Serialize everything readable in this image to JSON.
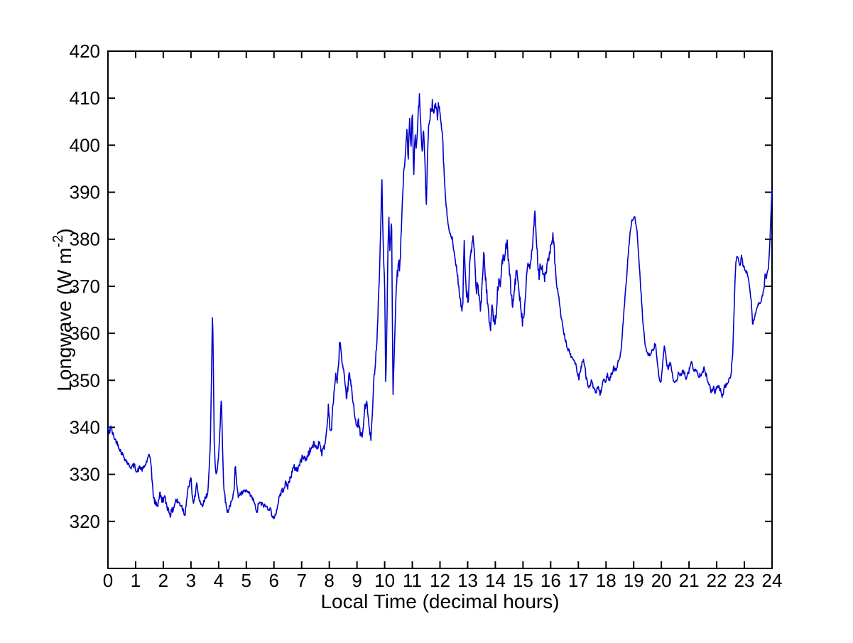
{
  "chart_data": {
    "type": "line",
    "title": "",
    "xlabel": "Local Time (decimal hours)",
    "ylabel": "Longwave (W m^-2)",
    "ylabel_parts": {
      "prefix": "Longwave (W m",
      "superscript": "-2",
      "suffix": ")"
    },
    "xlim": [
      0,
      24
    ],
    "ylim": [
      310,
      420
    ],
    "x_ticks": [
      0,
      1,
      2,
      3,
      4,
      5,
      6,
      7,
      8,
      9,
      10,
      11,
      12,
      13,
      14,
      15,
      16,
      17,
      18,
      19,
      20,
      21,
      22,
      23,
      24
    ],
    "y_ticks": [
      320,
      330,
      340,
      350,
      360,
      370,
      380,
      390,
      400,
      410,
      420
    ],
    "grid": false,
    "box": true,
    "tick_dir": "in",
    "legend": null,
    "line_color": "#0000CC",
    "axis_color": "#000000",
    "background": "#FFFFFF",
    "series_name": "Longwave",
    "sample_step_hours": 0.0167,
    "noise": {
      "seed": 42,
      "segments": [
        [
          0,
          1.55,
          0.5
        ],
        [
          1.55,
          3.6,
          0.7
        ],
        [
          3.6,
          4.2,
          0.5
        ],
        [
          4.2,
          6.1,
          0.5
        ],
        [
          6.1,
          7.9,
          0.7
        ],
        [
          7.9,
          9.55,
          0.8
        ],
        [
          9.55,
          10.45,
          0.8
        ],
        [
          10.45,
          12.15,
          1.2
        ],
        [
          12.15,
          12.8,
          0.6
        ],
        [
          12.8,
          16.15,
          1.2
        ],
        [
          16.15,
          17,
          0.5
        ],
        [
          17,
          18.45,
          0.6
        ],
        [
          18.45,
          19.3,
          0.4
        ],
        [
          19.3,
          22.5,
          0.5
        ],
        [
          22.5,
          24.01,
          0.4
        ]
      ]
    },
    "anchors": [
      [
        0,
        340
      ],
      [
        0.05,
        338.5
      ],
      [
        0.1,
        340.5
      ],
      [
        0.15,
        339
      ],
      [
        0.25,
        337.5
      ],
      [
        0.35,
        336.5
      ],
      [
        0.45,
        335
      ],
      [
        0.55,
        334
      ],
      [
        0.65,
        333
      ],
      [
        0.75,
        332
      ],
      [
        0.85,
        331.5
      ],
      [
        0.95,
        332
      ],
      [
        1.05,
        330.5
      ],
      [
        1.15,
        331.5
      ],
      [
        1.25,
        331
      ],
      [
        1.35,
        332
      ],
      [
        1.45,
        333.5
      ],
      [
        1.5,
        334
      ],
      [
        1.55,
        333
      ],
      [
        1.6,
        328
      ],
      [
        1.65,
        325
      ],
      [
        1.7,
        324
      ],
      [
        1.8,
        323.5
      ],
      [
        1.87,
        326
      ],
      [
        1.95,
        324.5
      ],
      [
        2.05,
        325
      ],
      [
        2.15,
        323
      ],
      [
        2.25,
        321.5
      ],
      [
        2.35,
        322.5
      ],
      [
        2.45,
        324.5
      ],
      [
        2.55,
        324
      ],
      [
        2.65,
        323.5
      ],
      [
        2.78,
        321.5
      ],
      [
        2.85,
        325
      ],
      [
        2.92,
        327.5
      ],
      [
        3.0,
        329
      ],
      [
        3.07,
        324
      ],
      [
        3.15,
        325
      ],
      [
        3.22,
        328.5
      ],
      [
        3.3,
        324
      ],
      [
        3.4,
        323
      ],
      [
        3.5,
        324.5
      ],
      [
        3.6,
        326
      ],
      [
        3.65,
        330
      ],
      [
        3.7,
        336
      ],
      [
        3.74,
        350
      ],
      [
        3.78,
        366
      ],
      [
        3.81,
        353
      ],
      [
        3.84,
        337
      ],
      [
        3.88,
        331
      ],
      [
        3.93,
        330
      ],
      [
        4.0,
        334
      ],
      [
        4.05,
        340
      ],
      [
        4.1,
        347
      ],
      [
        4.14,
        336
      ],
      [
        4.18,
        328
      ],
      [
        4.25,
        324
      ],
      [
        4.32,
        322
      ],
      [
        4.42,
        323.5
      ],
      [
        4.5,
        324.5
      ],
      [
        4.56,
        327
      ],
      [
        4.6,
        333
      ],
      [
        4.65,
        328
      ],
      [
        4.7,
        325.5
      ],
      [
        4.85,
        326
      ],
      [
        5.0,
        326.5
      ],
      [
        5.15,
        325.5
      ],
      [
        5.3,
        324
      ],
      [
        5.37,
        321.5
      ],
      [
        5.45,
        324
      ],
      [
        5.6,
        323.5
      ],
      [
        5.75,
        323
      ],
      [
        5.88,
        322.5
      ],
      [
        5.95,
        321
      ],
      [
        6.02,
        320.5
      ],
      [
        6.1,
        322.5
      ],
      [
        6.2,
        325.5
      ],
      [
        6.3,
        326.5
      ],
      [
        6.42,
        328
      ],
      [
        6.5,
        327.5
      ],
      [
        6.6,
        329.5
      ],
      [
        6.72,
        331.5
      ],
      [
        6.85,
        331
      ],
      [
        6.95,
        332.5
      ],
      [
        7.05,
        334
      ],
      [
        7.15,
        333
      ],
      [
        7.25,
        334.5
      ],
      [
        7.35,
        335.5
      ],
      [
        7.45,
        336.5
      ],
      [
        7.55,
        335.5
      ],
      [
        7.65,
        337
      ],
      [
        7.73,
        334.5
      ],
      [
        7.85,
        336.5
      ],
      [
        7.93,
        341
      ],
      [
        7.97,
        345
      ],
      [
        8.02,
        340
      ],
      [
        8.07,
        338.5
      ],
      [
        8.12,
        344
      ],
      [
        8.18,
        348
      ],
      [
        8.24,
        351.5
      ],
      [
        8.28,
        349
      ],
      [
        8.33,
        353
      ],
      [
        8.38,
        359
      ],
      [
        8.42,
        356.5
      ],
      [
        8.46,
        353.5
      ],
      [
        8.52,
        351.5
      ],
      [
        8.57,
        348.5
      ],
      [
        8.62,
        346.5
      ],
      [
        8.67,
        348.5
      ],
      [
        8.72,
        351.5
      ],
      [
        8.77,
        349.5
      ],
      [
        8.85,
        346
      ],
      [
        8.95,
        341.5
      ],
      [
        9.0,
        339.5
      ],
      [
        9.05,
        341.5
      ],
      [
        9.12,
        338.5
      ],
      [
        9.2,
        338
      ],
      [
        9.28,
        344
      ],
      [
        9.35,
        345.5
      ],
      [
        9.42,
        341
      ],
      [
        9.5,
        337.5
      ],
      [
        9.55,
        342
      ],
      [
        9.62,
        351
      ],
      [
        9.68,
        355
      ],
      [
        9.73,
        360
      ],
      [
        9.78,
        368
      ],
      [
        9.83,
        376
      ],
      [
        9.87,
        386
      ],
      [
        9.9,
        393.5
      ],
      [
        9.93,
        383
      ],
      [
        9.97,
        374
      ],
      [
        10.0,
        371
      ],
      [
        10.04,
        348
      ],
      [
        10.08,
        362
      ],
      [
        10.12,
        378
      ],
      [
        10.15,
        385
      ],
      [
        10.18,
        377
      ],
      [
        10.22,
        381
      ],
      [
        10.25,
        384.5
      ],
      [
        10.3,
        346.5
      ],
      [
        10.35,
        356
      ],
      [
        10.4,
        367
      ],
      [
        10.45,
        372
      ],
      [
        10.5,
        375
      ],
      [
        10.55,
        373.5
      ],
      [
        10.6,
        381.5
      ],
      [
        10.65,
        390
      ],
      [
        10.7,
        394.5
      ],
      [
        10.75,
        398
      ],
      [
        10.8,
        404
      ],
      [
        10.85,
        396
      ],
      [
        10.9,
        405.5
      ],
      [
        10.95,
        399
      ],
      [
        11.0,
        407.5
      ],
      [
        11.05,
        394
      ],
      [
        11.1,
        403
      ],
      [
        11.15,
        399.5
      ],
      [
        11.2,
        406
      ],
      [
        11.26,
        410.8
      ],
      [
        11.31,
        403.5
      ],
      [
        11.36,
        398
      ],
      [
        11.41,
        404.5
      ],
      [
        11.46,
        395
      ],
      [
        11.5,
        386
      ],
      [
        11.55,
        398
      ],
      [
        11.6,
        404.5
      ],
      [
        11.66,
        407
      ],
      [
        11.72,
        409
      ],
      [
        11.78,
        406.5
      ],
      [
        11.84,
        408.5
      ],
      [
        11.9,
        406
      ],
      [
        11.95,
        408.5
      ],
      [
        12.0,
        407
      ],
      [
        12.05,
        404.5
      ],
      [
        12.1,
        400.5
      ],
      [
        12.15,
        394
      ],
      [
        12.2,
        388.5
      ],
      [
        12.25,
        385.5
      ],
      [
        12.3,
        383.5
      ],
      [
        12.37,
        381
      ],
      [
        12.44,
        380
      ],
      [
        12.5,
        377.5
      ],
      [
        12.57,
        375
      ],
      [
        12.63,
        372.5
      ],
      [
        12.7,
        368.5
      ],
      [
        12.77,
        365.5
      ],
      [
        12.82,
        364.5
      ],
      [
        12.87,
        381
      ],
      [
        12.92,
        372
      ],
      [
        12.97,
        368
      ],
      [
        13.02,
        367
      ],
      [
        13.07,
        374
      ],
      [
        13.12,
        376.5
      ],
      [
        13.17,
        379.5
      ],
      [
        13.22,
        380.5
      ],
      [
        13.27,
        372.5
      ],
      [
        13.32,
        369.5
      ],
      [
        13.38,
        370
      ],
      [
        13.43,
        366.5
      ],
      [
        13.48,
        365.5
      ],
      [
        13.53,
        372
      ],
      [
        13.58,
        376.5
      ],
      [
        13.63,
        373.5
      ],
      [
        13.68,
        369.5
      ],
      [
        13.73,
        365
      ],
      [
        13.78,
        363
      ],
      [
        13.83,
        361.5
      ],
      [
        13.88,
        366
      ],
      [
        13.93,
        363.5
      ],
      [
        13.98,
        361.5
      ],
      [
        14.03,
        364
      ],
      [
        14.08,
        369
      ],
      [
        14.13,
        371.5
      ],
      [
        14.18,
        370
      ],
      [
        14.23,
        374.5
      ],
      [
        14.28,
        376.5
      ],
      [
        14.33,
        374.5
      ],
      [
        14.38,
        378.5
      ],
      [
        14.43,
        379.5
      ],
      [
        14.48,
        374.5
      ],
      [
        14.53,
        371.5
      ],
      [
        14.58,
        368
      ],
      [
        14.63,
        365.5
      ],
      [
        14.68,
        368.5
      ],
      [
        14.73,
        371.5
      ],
      [
        14.78,
        373.5
      ],
      [
        14.83,
        371
      ],
      [
        14.88,
        368
      ],
      [
        14.93,
        365.5
      ],
      [
        14.98,
        362.5
      ],
      [
        15.03,
        363.5
      ],
      [
        15.08,
        367
      ],
      [
        15.13,
        371.5
      ],
      [
        15.18,
        375
      ],
      [
        15.23,
        373.5
      ],
      [
        15.28,
        375.5
      ],
      [
        15.33,
        378
      ],
      [
        15.38,
        381.5
      ],
      [
        15.43,
        385.2
      ],
      [
        15.48,
        380
      ],
      [
        15.53,
        375.5
      ],
      [
        15.58,
        372.5
      ],
      [
        15.63,
        375
      ],
      [
        15.68,
        374
      ],
      [
        15.73,
        372
      ],
      [
        15.78,
        371.5
      ],
      [
        15.83,
        373.5
      ],
      [
        15.88,
        374.5
      ],
      [
        15.93,
        376
      ],
      [
        15.98,
        377.5
      ],
      [
        16.03,
        378.5
      ],
      [
        16.08,
        380.5
      ],
      [
        16.13,
        377.5
      ],
      [
        16.2,
        371
      ],
      [
        16.27,
        368.5
      ],
      [
        16.33,
        366
      ],
      [
        16.4,
        362.5
      ],
      [
        16.47,
        360.5
      ],
      [
        16.53,
        358.5
      ],
      [
        16.6,
        357
      ],
      [
        16.67,
        356
      ],
      [
        16.75,
        355
      ],
      [
        16.82,
        354.5
      ],
      [
        16.9,
        353.5
      ],
      [
        16.97,
        351.5
      ],
      [
        17.02,
        350.5
      ],
      [
        17.1,
        353
      ],
      [
        17.18,
        354.5
      ],
      [
        17.25,
        352
      ],
      [
        17.32,
        349.5
      ],
      [
        17.4,
        348.5
      ],
      [
        17.47,
        350
      ],
      [
        17.55,
        348
      ],
      [
        17.62,
        347.5
      ],
      [
        17.7,
        348.5
      ],
      [
        17.78,
        347
      ],
      [
        17.85,
        348.5
      ],
      [
        17.92,
        350
      ],
      [
        17.98,
        349
      ],
      [
        18.05,
        351.5
      ],
      [
        18.12,
        350
      ],
      [
        18.2,
        351.5
      ],
      [
        18.27,
        352.5
      ],
      [
        18.35,
        352
      ],
      [
        18.42,
        353.5
      ],
      [
        18.5,
        354.5
      ],
      [
        18.56,
        357.5
      ],
      [
        18.62,
        362.5
      ],
      [
        18.68,
        367
      ],
      [
        18.74,
        371.5
      ],
      [
        18.8,
        376.5
      ],
      [
        18.86,
        381
      ],
      [
        18.92,
        383.5
      ],
      [
        18.97,
        384.5
      ],
      [
        19.02,
        385
      ],
      [
        19.07,
        383.5
      ],
      [
        19.12,
        382
      ],
      [
        19.18,
        376.5
      ],
      [
        19.24,
        371
      ],
      [
        19.3,
        365.5
      ],
      [
        19.36,
        360.5
      ],
      [
        19.42,
        357.5
      ],
      [
        19.48,
        356
      ],
      [
        19.55,
        355.5
      ],
      [
        19.65,
        356
      ],
      [
        19.72,
        356.5
      ],
      [
        19.78,
        358
      ],
      [
        19.85,
        354
      ],
      [
        19.92,
        350.5
      ],
      [
        19.98,
        349.5
      ],
      [
        20.03,
        352.5
      ],
      [
        20.08,
        356
      ],
      [
        20.12,
        357.5
      ],
      [
        20.18,
        354
      ],
      [
        20.25,
        352.5
      ],
      [
        20.32,
        354
      ],
      [
        20.4,
        351
      ],
      [
        20.48,
        349
      ],
      [
        20.55,
        350
      ],
      [
        20.62,
        351.5
      ],
      [
        20.7,
        351
      ],
      [
        20.8,
        352
      ],
      [
        20.9,
        350.5
      ],
      [
        21.0,
        352
      ],
      [
        21.08,
        354
      ],
      [
        21.15,
        352.5
      ],
      [
        21.25,
        352
      ],
      [
        21.35,
        351
      ],
      [
        21.45,
        351.5
      ],
      [
        21.55,
        352.5
      ],
      [
        21.65,
        350.5
      ],
      [
        21.72,
        349.5
      ],
      [
        21.8,
        347.5
      ],
      [
        21.88,
        348.5
      ],
      [
        21.95,
        347.5
      ],
      [
        22.05,
        349
      ],
      [
        22.12,
        348
      ],
      [
        22.2,
        346.5
      ],
      [
        22.28,
        348.5
      ],
      [
        22.35,
        349
      ],
      [
        22.45,
        350
      ],
      [
        22.52,
        351.5
      ],
      [
        22.58,
        356
      ],
      [
        22.62,
        363
      ],
      [
        22.66,
        371
      ],
      [
        22.7,
        375.5
      ],
      [
        22.75,
        376.5
      ],
      [
        22.8,
        375
      ],
      [
        22.85,
        374.5
      ],
      [
        22.9,
        376.4
      ],
      [
        22.95,
        374.5
      ],
      [
        23.0,
        374
      ],
      [
        23.07,
        373
      ],
      [
        23.14,
        372
      ],
      [
        23.2,
        369.5
      ],
      [
        23.26,
        366
      ],
      [
        23.3,
        362
      ],
      [
        23.36,
        363
      ],
      [
        23.42,
        364.5
      ],
      [
        23.5,
        366.5
      ],
      [
        23.56,
        366
      ],
      [
        23.63,
        367.5
      ],
      [
        23.7,
        369
      ],
      [
        23.75,
        372.5
      ],
      [
        23.8,
        372
      ],
      [
        23.86,
        373.5
      ],
      [
        23.9,
        377
      ],
      [
        23.94,
        382
      ],
      [
        23.97,
        387
      ],
      [
        24.0,
        391
      ]
    ]
  }
}
